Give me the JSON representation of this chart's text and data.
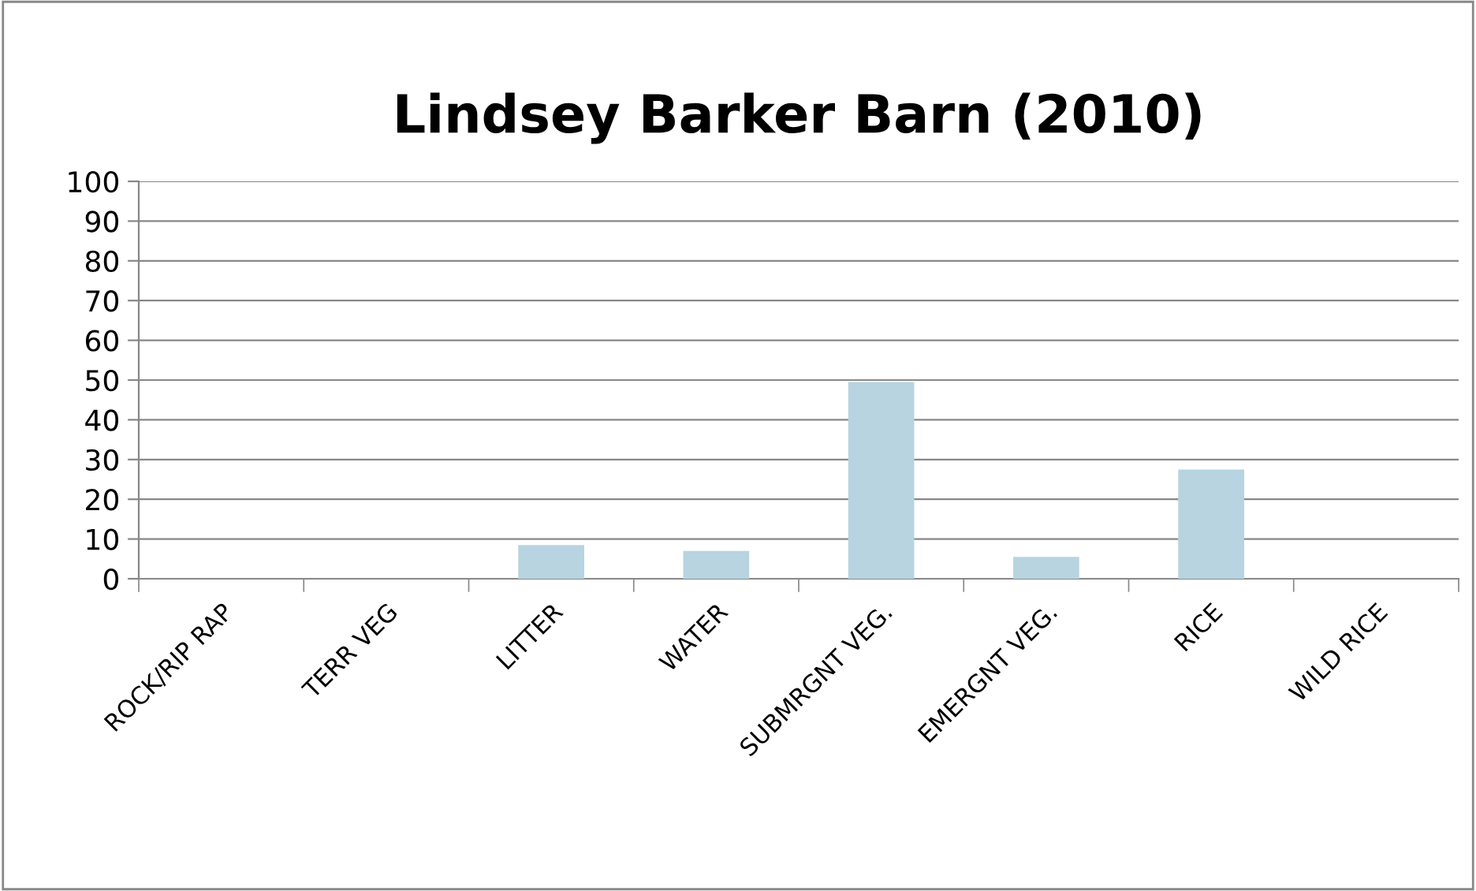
{
  "chart_data": {
    "type": "bar",
    "title": "Lindsey Barker Barn (2010)",
    "categories": [
      "ROCK/RIP RAP",
      "TERR VEG",
      "LITTER",
      "WATER",
      "SUBMRGNT VEG.",
      "EMERGNT VEG.",
      "RICE",
      "WILD RICE"
    ],
    "values": [
      0,
      0,
      8.5,
      7,
      49.5,
      5.5,
      27.5,
      0
    ],
    "color": "#b7d4e0",
    "ylim": [
      0,
      100
    ],
    "yticks": [
      0,
      10,
      20,
      30,
      40,
      50,
      60,
      70,
      80,
      90,
      100
    ],
    "grid": "y",
    "legend": false
  }
}
